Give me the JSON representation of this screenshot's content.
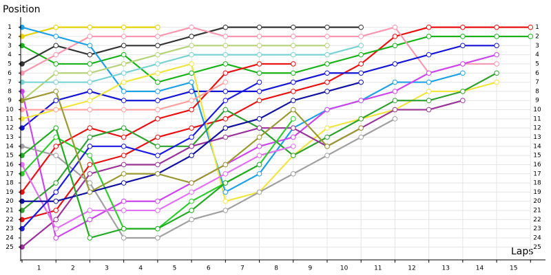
{
  "chart_data": {
    "type": "position",
    "title": "Position",
    "x_label": "Laps",
    "x": [
      0,
      1,
      2,
      3,
      4,
      5,
      6,
      7,
      8,
      9,
      10,
      11,
      12,
      13,
      14,
      15
    ],
    "xlim": [
      0,
      15.4
    ],
    "ylim": [
      26.4,
      -0.1
    ],
    "xticks": [
      {
        "value": 0.5,
        "label": "1"
      },
      {
        "value": 1.5,
        "label": "2"
      },
      {
        "value": 2.5,
        "label": "3"
      },
      {
        "value": 3.5,
        "label": "4"
      },
      {
        "value": 4.5,
        "label": "5"
      },
      {
        "value": 5.5,
        "label": "6"
      },
      {
        "value": 6.5,
        "label": "7"
      },
      {
        "value": 7.5,
        "label": "8"
      },
      {
        "value": 8.5,
        "label": "9"
      },
      {
        "value": 9.5,
        "label": "10"
      },
      {
        "value": 10.5,
        "label": "11"
      },
      {
        "value": 11.5,
        "label": "12"
      },
      {
        "value": 12.5,
        "label": "13"
      },
      {
        "value": 13.5,
        "label": "14"
      },
      {
        "value": 14.5,
        "label": "15"
      }
    ],
    "yticks": [
      1,
      2,
      3,
      4,
      5,
      6,
      7,
      8,
      9,
      10,
      11,
      12,
      13,
      14,
      15,
      16,
      17,
      18,
      19,
      20,
      21,
      22,
      23,
      24,
      25
    ],
    "grid": true,
    "series": [
      {
        "color": "#e81010",
        "values": [
          22,
          21,
          16,
          15,
          13,
          12,
          11,
          9,
          8,
          7,
          5,
          2,
          1,
          1,
          1,
          1
        ]
      },
      {
        "color": "#19b219",
        "values": [
          3,
          5,
          5,
          4,
          7,
          6,
          5,
          6,
          6,
          5,
          4,
          3,
          2,
          2,
          2,
          2
        ]
      },
      {
        "color": "#333333",
        "values": [
          5,
          3,
          4,
          3,
          3,
          2,
          1,
          1,
          1,
          1,
          1,
          null,
          null,
          null,
          null,
          null
        ]
      },
      {
        "color": "#e6d200",
        "values": [
          2,
          1,
          1,
          1,
          1,
          null,
          null,
          null,
          null,
          null,
          null,
          null,
          null,
          null,
          null,
          null
        ]
      },
      {
        "color": "#f598b0",
        "values": [
          6,
          4,
          2,
          2,
          2,
          1,
          2,
          2,
          2,
          2,
          2,
          1,
          6,
          5,
          5,
          null
        ]
      },
      {
        "color": "#1ea0e6",
        "values": [
          1,
          2,
          3,
          8,
          8,
          7,
          19,
          17,
          12,
          10,
          9,
          7,
          7,
          6,
          null,
          null
        ]
      },
      {
        "color": "#1414d2",
        "values": [
          12,
          9,
          8,
          9,
          9,
          8,
          8,
          8,
          7,
          6,
          6,
          5,
          4,
          3,
          3,
          null
        ]
      },
      {
        "color": "#cc44ee",
        "values": [
          8,
          24,
          22,
          20,
          20,
          18,
          16,
          14,
          13,
          10,
          9,
          8,
          6,
          5,
          4,
          null
        ]
      },
      {
        "color": "#b4d278",
        "values": [
          9,
          6,
          6,
          5,
          4,
          3,
          3,
          3,
          3,
          3,
          null,
          null,
          null,
          null,
          null,
          null
        ]
      },
      {
        "color": "#78d2d2",
        "values": [
          7,
          7,
          7,
          6,
          5,
          4,
          4,
          4,
          4,
          4,
          3,
          null,
          null,
          null,
          null,
          null
        ]
      },
      {
        "color": "#e81010",
        "values": [
          19,
          14,
          12,
          13,
          11,
          10,
          6,
          5,
          5,
          null,
          null,
          null,
          null,
          null,
          null,
          null
        ]
      },
      {
        "color": "#f0e640",
        "values": [
          11,
          10,
          9,
          7,
          6,
          5,
          20,
          19,
          15,
          12,
          11,
          10,
          8,
          8,
          7,
          null
        ]
      },
      {
        "color": "#ff9f9f",
        "values": [
          10,
          10,
          10,
          10,
          10,
          9,
          7,
          null,
          null,
          null,
          null,
          null,
          null,
          null,
          null,
          null
        ]
      },
      {
        "color": "#30a030",
        "values": [
          21,
          18,
          13,
          12,
          14,
          14,
          10,
          12,
          15,
          13,
          11,
          9,
          9,
          8,
          6,
          null
        ]
      },
      {
        "color": "#993399",
        "values": [
          25,
          22,
          17,
          16,
          16,
          14,
          13,
          12,
          12,
          14,
          12,
          10,
          10,
          9,
          null,
          null
        ]
      },
      {
        "color": "#a0a0a0",
        "values": [
          14,
          15,
          18,
          24,
          24,
          22,
          21,
          19,
          17,
          15,
          13,
          11,
          null,
          null,
          null,
          null
        ]
      },
      {
        "color": "#e070f0",
        "values": [
          16,
          23,
          21,
          21,
          21,
          19,
          17,
          15,
          14,
          null,
          null,
          null,
          null,
          null,
          null,
          null
        ]
      },
      {
        "color": "#2ecc2e",
        "values": [
          17,
          13,
          15,
          23,
          23,
          20,
          18,
          16,
          11,
          null,
          null,
          null,
          null,
          null,
          null,
          null
        ]
      },
      {
        "color": "#1a1ae0",
        "values": [
          23,
          19,
          14,
          14,
          15,
          13,
          9,
          7,
          null,
          null,
          null,
          null,
          null,
          null,
          null,
          null
        ]
      },
      {
        "color": "#1010a0",
        "values": [
          20,
          20,
          19,
          18,
          17,
          15,
          12,
          11,
          9,
          8,
          7,
          null,
          null,
          null,
          null,
          null
        ]
      },
      {
        "color": "#999933",
        "values": [
          9,
          8,
          19,
          17,
          17,
          18,
          16,
          13,
          10,
          14,
          12,
          null,
          null,
          null,
          null,
          null
        ]
      },
      {
        "color": "#22aa22",
        "values": [
          15,
          12,
          24,
          23,
          23,
          21,
          18,
          16,
          null,
          null,
          null,
          null,
          null,
          null,
          null,
          null
        ]
      }
    ]
  }
}
